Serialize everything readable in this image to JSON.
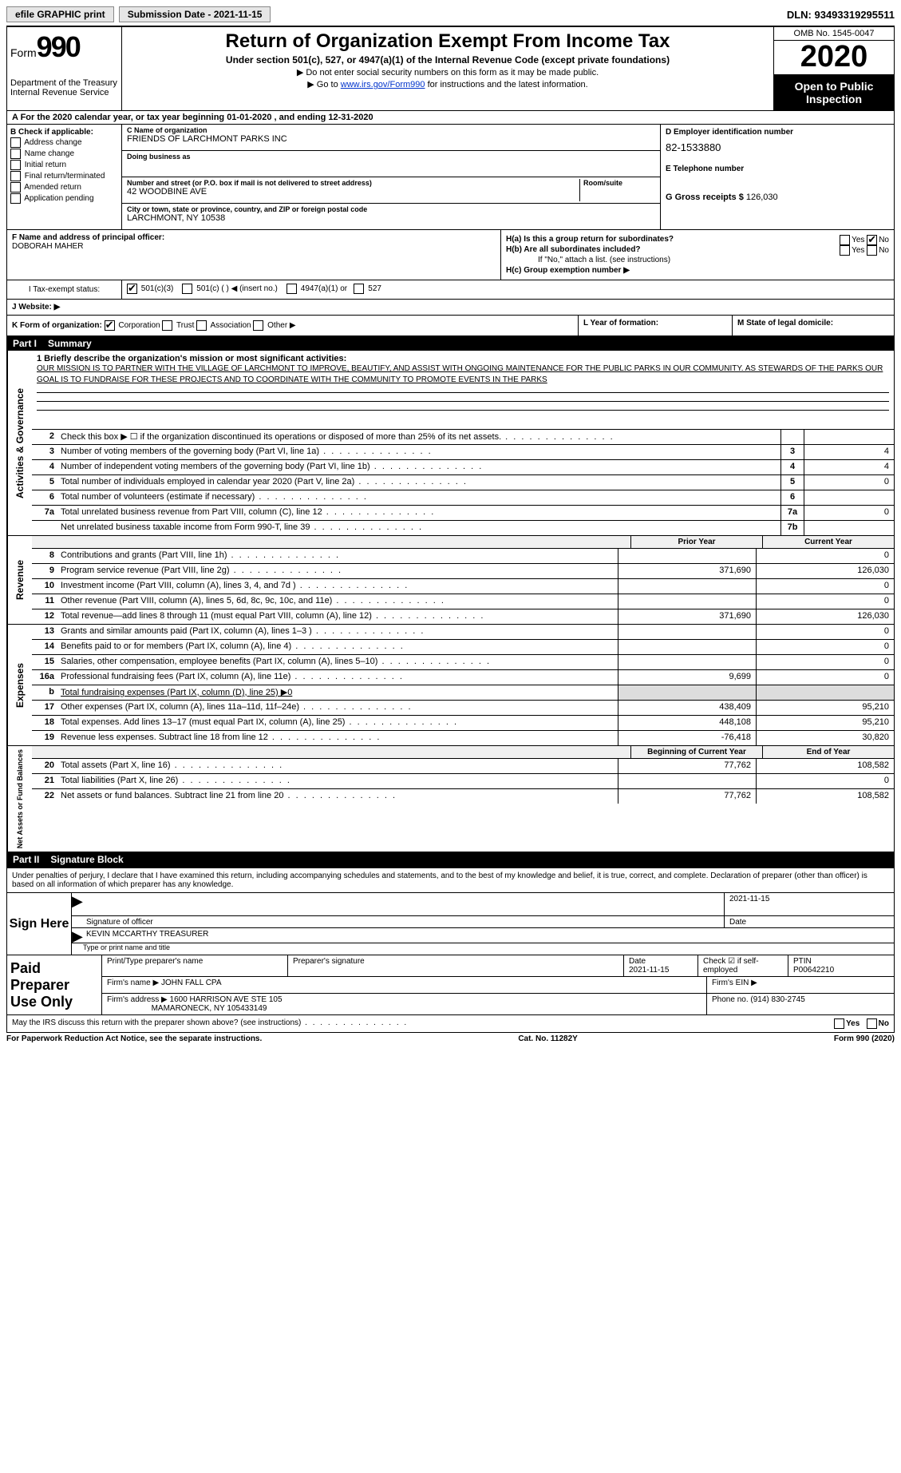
{
  "topbar": {
    "efile": "efile GRAPHIC print",
    "sub_label": "Submission Date - 2021-11-15",
    "dln": "DLN: 93493319295511"
  },
  "header": {
    "form_label": "Form",
    "form_num": "990",
    "dept": "Department of the Treasury\nInternal Revenue Service",
    "title": "Return of Organization Exempt From Income Tax",
    "subtitle": "Under section 501(c), 527, or 4947(a)(1) of the Internal Revenue Code (except private foundations)",
    "note1": "▶ Do not enter social security numbers on this form as it may be made public.",
    "note2_pre": "▶ Go to ",
    "note2_link": "www.irs.gov/Form990",
    "note2_post": " for instructions and the latest information.",
    "omb": "OMB No. 1545-0047",
    "year": "2020",
    "inspect": "Open to Public Inspection"
  },
  "sectionA": "A For the 2020 calendar year, or tax year beginning 01-01-2020    , and ending 12-31-2020",
  "boxB": {
    "label": "B Check if applicable:",
    "opts": [
      "Address change",
      "Name change",
      "Initial return",
      "Final return/terminated",
      "Amended return",
      "Application pending"
    ]
  },
  "boxC": {
    "name_lbl": "C Name of organization",
    "name": "FRIENDS OF LARCHMONT PARKS INC",
    "dba_lbl": "Doing business as",
    "addr_lbl": "Number and street (or P.O. box if mail is not delivered to street address)",
    "room_lbl": "Room/suite",
    "addr": "42 WOODBINE AVE",
    "city_lbl": "City or town, state or province, country, and ZIP or foreign postal code",
    "city": "LARCHMONT, NY  10538"
  },
  "boxD": {
    "ein_lbl": "D Employer identification number",
    "ein": "82-1533880",
    "tel_lbl": "E Telephone number",
    "gross_lbl": "G Gross receipts $",
    "gross": "126,030"
  },
  "boxF": {
    "lbl": "F  Name and address of principal officer:",
    "name": "DOBORAH MAHER"
  },
  "boxH": {
    "ha": "H(a)  Is this a group return for subordinates?",
    "hb": "H(b)  Are all subordinates included?",
    "hb_note": "If \"No,\" attach a list. (see instructions)",
    "hc": "H(c)  Group exemption number ▶",
    "yes": "Yes",
    "no": "No"
  },
  "taxI": {
    "lbl": "I   Tax-exempt status:",
    "opts": [
      "501(c)(3)",
      "501(c) (  ) ◀ (insert no.)",
      "4947(a)(1) or",
      "527"
    ]
  },
  "webJ": "J   Website: ▶",
  "rowK": {
    "k": "K Form of organization:",
    "opts": [
      "Corporation",
      "Trust",
      "Association",
      "Other ▶"
    ],
    "l": "L Year of formation:",
    "m": "M State of legal domicile:"
  },
  "part1": {
    "num": "Part I",
    "title": "Summary"
  },
  "mission": {
    "lbl": "1  Briefly describe the organization's mission or most significant activities:",
    "text": "OUR MISSION IS TO PARTNER WITH THE VILLAGE OF LARCHMONT TO IMPROVE, BEAUTIFY, AND ASSIST WITH ONGOING MAINTENANCE FOR THE PUBLIC PARKS IN OUR COMMUNITY. AS STEWARDS OF THE PARKS OUR GOAL IS TO FUNDRAISE FOR THESE PROJECTS AND TO COORDINATE WITH THE COMMUNITY TO PROMOTE EVENTS IN THE PARKS"
  },
  "side_labels": {
    "gov": "Activities & Governance",
    "rev": "Revenue",
    "exp": "Expenses",
    "net": "Net Assets or Fund Balances"
  },
  "gov_rows": [
    {
      "n": "2",
      "t": "Check this box ▶ ☐ if the organization discontinued its operations or disposed of more than 25% of its net assets.",
      "box": "",
      "v": ""
    },
    {
      "n": "3",
      "t": "Number of voting members of the governing body (Part VI, line 1a)",
      "box": "3",
      "v": "4"
    },
    {
      "n": "4",
      "t": "Number of independent voting members of the governing body (Part VI, line 1b)",
      "box": "4",
      "v": "4"
    },
    {
      "n": "5",
      "t": "Total number of individuals employed in calendar year 2020 (Part V, line 2a)",
      "box": "5",
      "v": "0"
    },
    {
      "n": "6",
      "t": "Total number of volunteers (estimate if necessary)",
      "box": "6",
      "v": ""
    },
    {
      "n": "7a",
      "t": "Total unrelated business revenue from Part VIII, column (C), line 12",
      "box": "7a",
      "v": "0"
    },
    {
      "n": "",
      "t": "Net unrelated business taxable income from Form 990-T, line 39",
      "box": "7b",
      "v": ""
    }
  ],
  "year_headers": {
    "prior": "Prior Year",
    "current": "Current Year"
  },
  "rev_rows": [
    {
      "n": "8",
      "t": "Contributions and grants (Part VIII, line 1h)",
      "py": "",
      "cy": "0"
    },
    {
      "n": "9",
      "t": "Program service revenue (Part VIII, line 2g)",
      "py": "371,690",
      "cy": "126,030"
    },
    {
      "n": "10",
      "t": "Investment income (Part VIII, column (A), lines 3, 4, and 7d )",
      "py": "",
      "cy": "0"
    },
    {
      "n": "11",
      "t": "Other revenue (Part VIII, column (A), lines 5, 6d, 8c, 9c, 10c, and 11e)",
      "py": "",
      "cy": "0"
    },
    {
      "n": "12",
      "t": "Total revenue—add lines 8 through 11 (must equal Part VIII, column (A), line 12)",
      "py": "371,690",
      "cy": "126,030"
    }
  ],
  "exp_rows": [
    {
      "n": "13",
      "t": "Grants and similar amounts paid (Part IX, column (A), lines 1–3 )",
      "py": "",
      "cy": "0"
    },
    {
      "n": "14",
      "t": "Benefits paid to or for members (Part IX, column (A), line 4)",
      "py": "",
      "cy": "0"
    },
    {
      "n": "15",
      "t": "Salaries, other compensation, employee benefits (Part IX, column (A), lines 5–10)",
      "py": "",
      "cy": "0"
    },
    {
      "n": "16a",
      "t": "Professional fundraising fees (Part IX, column (A), line 11e)",
      "py": "9,699",
      "cy": "0"
    },
    {
      "n": "b",
      "t": "Total fundraising expenses (Part IX, column (D), line 25) ▶0",
      "py": "",
      "cy": "",
      "noright": true
    },
    {
      "n": "17",
      "t": "Other expenses (Part IX, column (A), lines 11a–11d, 11f–24e)",
      "py": "438,409",
      "cy": "95,210"
    },
    {
      "n": "18",
      "t": "Total expenses. Add lines 13–17 (must equal Part IX, column (A), line 25)",
      "py": "448,108",
      "cy": "95,210"
    },
    {
      "n": "19",
      "t": "Revenue less expenses. Subtract line 18 from line 12",
      "py": "-76,418",
      "cy": "30,820"
    }
  ],
  "net_headers": {
    "beg": "Beginning of Current Year",
    "end": "End of Year"
  },
  "net_rows": [
    {
      "n": "20",
      "t": "Total assets (Part X, line 16)",
      "py": "77,762",
      "cy": "108,582"
    },
    {
      "n": "21",
      "t": "Total liabilities (Part X, line 26)",
      "py": "",
      "cy": "0"
    },
    {
      "n": "22",
      "t": "Net assets or fund balances. Subtract line 21 from line 20",
      "py": "77,762",
      "cy": "108,582"
    }
  ],
  "part2": {
    "num": "Part II",
    "title": "Signature Block"
  },
  "sig": {
    "decl": "Under penalties of perjury, I declare that I have examined this return, including accompanying schedules and statements, and to the best of my knowledge and belief, it is true, correct, and complete. Declaration of preparer (other than officer) is based on all information of which preparer has any knowledge.",
    "sign_here": "Sign Here",
    "sig_lbl": "Signature of officer",
    "date": "2021-11-15",
    "date_lbl": "Date",
    "name": "KEVIN MCCARTHY TREASURER",
    "name_lbl": "Type or print name and title"
  },
  "prep": {
    "lbl": "Paid Preparer Use Only",
    "h1": "Print/Type preparer's name",
    "h2": "Preparer's signature",
    "h3": "Date",
    "h3v": "2021-11-15",
    "h4": "Check ☑ if self-employed",
    "h5": "PTIN",
    "h5v": "P00642210",
    "firm_lbl": "Firm's name   ▶",
    "firm": "JOHN FALL CPA",
    "ein_lbl": "Firm's EIN ▶",
    "addr_lbl": "Firm's address ▶",
    "addr1": "1600 HARRISON AVE STE 105",
    "addr2": "MAMARONECK, NY  105433149",
    "phone_lbl": "Phone no.",
    "phone": "(914) 830-2745"
  },
  "footer": {
    "q": "May the IRS discuss this return with the preparer shown above? (see instructions)",
    "yes": "Yes",
    "no": "No"
  },
  "bottom": {
    "left": "For Paperwork Reduction Act Notice, see the separate instructions.",
    "mid": "Cat. No. 11282Y",
    "right": "Form 990 (2020)"
  }
}
